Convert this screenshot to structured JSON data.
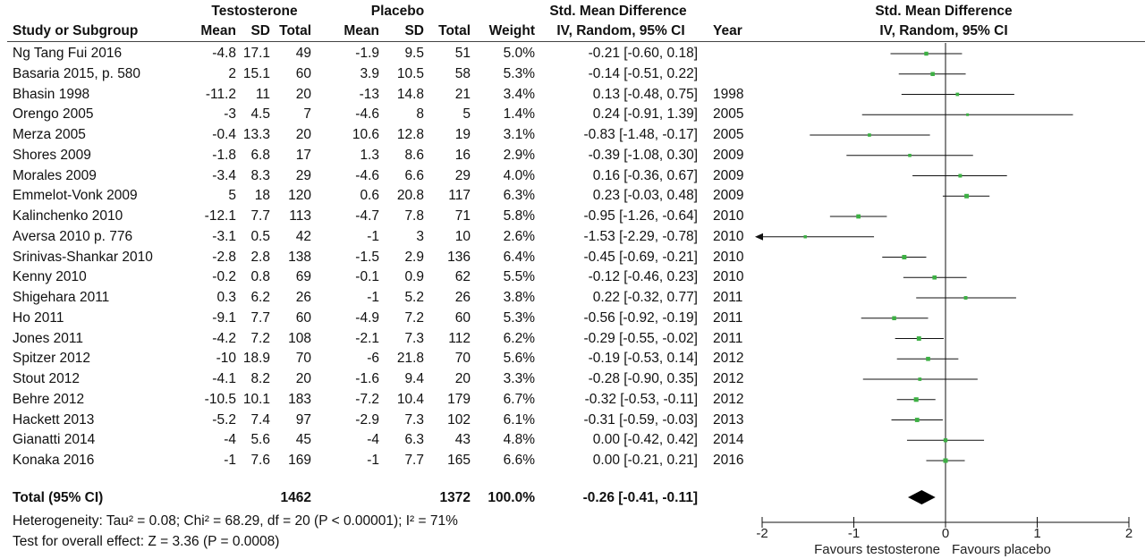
{
  "group_headers": {
    "treatment": "Testosterone",
    "control": "Placebo",
    "effect": "Std. Mean Difference",
    "plot_title": "Std. Mean Difference"
  },
  "columns": {
    "study": "Study or Subgroup",
    "mean": "Mean",
    "sd": "SD",
    "total": "Total",
    "weight": "Weight",
    "ci": "IV, Random, 95% CI",
    "year": "Year",
    "plot_method": "IV, Random, 95% CI"
  },
  "studies": [
    {
      "study": "Ng Tang Fui 2016",
      "t_mean": "-4.8",
      "t_sd": "17.1",
      "t_total": "49",
      "p_mean": "-1.9",
      "p_sd": "9.5",
      "p_total": "51",
      "weight": "5.0%",
      "ci": "-0.21 [-0.60, 0.18]",
      "year": ""
    },
    {
      "study": "Basaria 2015, p. 580",
      "t_mean": "2",
      "t_sd": "15.1",
      "t_total": "60",
      "p_mean": "3.9",
      "p_sd": "10.5",
      "p_total": "58",
      "weight": "5.3%",
      "ci": "-0.14 [-0.51, 0.22]",
      "year": ""
    },
    {
      "study": "Bhasin 1998",
      "t_mean": "-11.2",
      "t_sd": "11",
      "t_total": "20",
      "p_mean": "-13",
      "p_sd": "14.8",
      "p_total": "21",
      "weight": "3.4%",
      "ci": "0.13 [-0.48, 0.75]",
      "year": "1998"
    },
    {
      "study": "Orengo 2005",
      "t_mean": "-3",
      "t_sd": "4.5",
      "t_total": "7",
      "p_mean": "-4.6",
      "p_sd": "8",
      "p_total": "5",
      "weight": "1.4%",
      "ci": "0.24 [-0.91, 1.39]",
      "year": "2005"
    },
    {
      "study": "Merza 2005",
      "t_mean": "-0.4",
      "t_sd": "13.3",
      "t_total": "20",
      "p_mean": "10.6",
      "p_sd": "12.8",
      "p_total": "19",
      "weight": "3.1%",
      "ci": "-0.83 [-1.48, -0.17]",
      "year": "2005"
    },
    {
      "study": "Shores 2009",
      "t_mean": "-1.8",
      "t_sd": "6.8",
      "t_total": "17",
      "p_mean": "1.3",
      "p_sd": "8.6",
      "p_total": "16",
      "weight": "2.9%",
      "ci": "-0.39 [-1.08, 0.30]",
      "year": "2009"
    },
    {
      "study": "Morales 2009",
      "t_mean": "-3.4",
      "t_sd": "8.3",
      "t_total": "29",
      "p_mean": "-4.6",
      "p_sd": "6.6",
      "p_total": "29",
      "weight": "4.0%",
      "ci": "0.16 [-0.36, 0.67]",
      "year": "2009"
    },
    {
      "study": "Emmelot-Vonk 2009",
      "t_mean": "5",
      "t_sd": "18",
      "t_total": "120",
      "p_mean": "0.6",
      "p_sd": "20.8",
      "p_total": "117",
      "weight": "6.3%",
      "ci": "0.23 [-0.03, 0.48]",
      "year": "2009"
    },
    {
      "study": "Kalinchenko 2010",
      "t_mean": "-12.1",
      "t_sd": "7.7",
      "t_total": "113",
      "p_mean": "-4.7",
      "p_sd": "7.8",
      "p_total": "71",
      "weight": "5.8%",
      "ci": "-0.95 [-1.26, -0.64]",
      "year": "2010"
    },
    {
      "study": "Aversa 2010 p. 776",
      "t_mean": "-3.1",
      "t_sd": "0.5",
      "t_total": "42",
      "p_mean": "-1",
      "p_sd": "3",
      "p_total": "10",
      "weight": "2.6%",
      "ci": "-1.53 [-2.29, -0.78]",
      "year": "2010"
    },
    {
      "study": "Srinivas-Shankar 2010",
      "t_mean": "-2.8",
      "t_sd": "2.8",
      "t_total": "138",
      "p_mean": "-1.5",
      "p_sd": "2.9",
      "p_total": "136",
      "weight": "6.4%",
      "ci": "-0.45 [-0.69, -0.21]",
      "year": "2010"
    },
    {
      "study": "Kenny 2010",
      "t_mean": "-0.2",
      "t_sd": "0.8",
      "t_total": "69",
      "p_mean": "-0.1",
      "p_sd": "0.9",
      "p_total": "62",
      "weight": "5.5%",
      "ci": "-0.12 [-0.46, 0.23]",
      "year": "2010"
    },
    {
      "study": "Shigehara 2011",
      "t_mean": "0.3",
      "t_sd": "6.2",
      "t_total": "26",
      "p_mean": "-1",
      "p_sd": "5.2",
      "p_total": "26",
      "weight": "3.8%",
      "ci": "0.22 [-0.32, 0.77]",
      "year": "2011"
    },
    {
      "study": "Ho 2011",
      "t_mean": "-9.1",
      "t_sd": "7.7",
      "t_total": "60",
      "p_mean": "-4.9",
      "p_sd": "7.2",
      "p_total": "60",
      "weight": "5.3%",
      "ci": "-0.56 [-0.92, -0.19]",
      "year": "2011"
    },
    {
      "study": "Jones 2011",
      "t_mean": "-4.2",
      "t_sd": "7.2",
      "t_total": "108",
      "p_mean": "-2.1",
      "p_sd": "7.3",
      "p_total": "112",
      "weight": "6.2%",
      "ci": "-0.29 [-0.55, -0.02]",
      "year": "2011"
    },
    {
      "study": "Spitzer 2012",
      "t_mean": "-10",
      "t_sd": "18.9",
      "t_total": "70",
      "p_mean": "-6",
      "p_sd": "21.8",
      "p_total": "70",
      "weight": "5.6%",
      "ci": "-0.19 [-0.53, 0.14]",
      "year": "2012"
    },
    {
      "study": "Stout 2012",
      "t_mean": "-4.1",
      "t_sd": "8.2",
      "t_total": "20",
      "p_mean": "-1.6",
      "p_sd": "9.4",
      "p_total": "20",
      "weight": "3.3%",
      "ci": "-0.28 [-0.90, 0.35]",
      "year": "2012"
    },
    {
      "study": "Behre 2012",
      "t_mean": "-10.5",
      "t_sd": "10.1",
      "t_total": "183",
      "p_mean": "-7.2",
      "p_sd": "10.4",
      "p_total": "179",
      "weight": "6.7%",
      "ci": "-0.32 [-0.53, -0.11]",
      "year": "2012"
    },
    {
      "study": "Hackett 2013",
      "t_mean": "-5.2",
      "t_sd": "7.4",
      "t_total": "97",
      "p_mean": "-2.9",
      "p_sd": "7.3",
      "p_total": "102",
      "weight": "6.1%",
      "ci": "-0.31 [-0.59, -0.03]",
      "year": "2013"
    },
    {
      "study": "Gianatti 2014",
      "t_mean": "-4",
      "t_sd": "5.6",
      "t_total": "45",
      "p_mean": "-4",
      "p_sd": "6.3",
      "p_total": "43",
      "weight": "4.8%",
      "ci": "0.00 [-0.42, 0.42]",
      "year": "2014"
    },
    {
      "study": "Konaka 2016",
      "t_mean": "-1",
      "t_sd": "7.6",
      "t_total": "169",
      "p_mean": "-1",
      "p_sd": "7.7",
      "p_total": "165",
      "weight": "6.6%",
      "ci": "0.00 [-0.21, 0.21]",
      "year": "2016"
    }
  ],
  "total": {
    "label": "Total (95% CI)",
    "t_total": "1462",
    "p_total": "1372",
    "weight": "100.0%",
    "ci": "-0.26 [-0.41, -0.11]"
  },
  "heterogeneity": "Heterogeneity: Tau² = 0.08; Chi² = 68.29, df = 20 (P < 0.00001); I² = 71%",
  "overall_effect": "Test for overall effect: Z = 3.36 (P = 0.0008)",
  "axis": {
    "ticks": [
      "-2",
      "-1",
      "0",
      "1",
      "2"
    ],
    "favours_left": "Favours testosterone",
    "favours_right": "Favours placebo"
  },
  "colors": {
    "point": "#3cb043",
    "line": "#111111",
    "diamond": "#000000"
  },
  "chart_data": {
    "type": "forest",
    "xlim": [
      -2,
      2
    ],
    "x_ticks": [
      -2,
      -1,
      0,
      1,
      2
    ],
    "reference_line": 0,
    "studies": [
      {
        "name": "Ng Tang Fui 2016",
        "smd": -0.21,
        "lo": -0.6,
        "hi": 0.18,
        "weight": 5.0
      },
      {
        "name": "Basaria 2015, p. 580",
        "smd": -0.14,
        "lo": -0.51,
        "hi": 0.22,
        "weight": 5.3
      },
      {
        "name": "Bhasin 1998",
        "smd": 0.13,
        "lo": -0.48,
        "hi": 0.75,
        "weight": 3.4
      },
      {
        "name": "Orengo 2005",
        "smd": 0.24,
        "lo": -0.91,
        "hi": 1.39,
        "weight": 1.4
      },
      {
        "name": "Merza 2005",
        "smd": -0.83,
        "lo": -1.48,
        "hi": -0.17,
        "weight": 3.1
      },
      {
        "name": "Shores 2009",
        "smd": -0.39,
        "lo": -1.08,
        "hi": 0.3,
        "weight": 2.9
      },
      {
        "name": "Morales 2009",
        "smd": 0.16,
        "lo": -0.36,
        "hi": 0.67,
        "weight": 4.0
      },
      {
        "name": "Emmelot-Vonk 2009",
        "smd": 0.23,
        "lo": -0.03,
        "hi": 0.48,
        "weight": 6.3
      },
      {
        "name": "Kalinchenko 2010",
        "smd": -0.95,
        "lo": -1.26,
        "hi": -0.64,
        "weight": 5.8
      },
      {
        "name": "Aversa 2010 p. 776",
        "smd": -1.53,
        "lo": -2.29,
        "hi": -0.78,
        "weight": 2.6
      },
      {
        "name": "Srinivas-Shankar 2010",
        "smd": -0.45,
        "lo": -0.69,
        "hi": -0.21,
        "weight": 6.4
      },
      {
        "name": "Kenny 2010",
        "smd": -0.12,
        "lo": -0.46,
        "hi": 0.23,
        "weight": 5.5
      },
      {
        "name": "Shigehara 2011",
        "smd": 0.22,
        "lo": -0.32,
        "hi": 0.77,
        "weight": 3.8
      },
      {
        "name": "Ho 2011",
        "smd": -0.56,
        "lo": -0.92,
        "hi": -0.19,
        "weight": 5.3
      },
      {
        "name": "Jones 2011",
        "smd": -0.29,
        "lo": -0.55,
        "hi": -0.02,
        "weight": 6.2
      },
      {
        "name": "Spitzer 2012",
        "smd": -0.19,
        "lo": -0.53,
        "hi": 0.14,
        "weight": 5.6
      },
      {
        "name": "Stout 2012",
        "smd": -0.28,
        "lo": -0.9,
        "hi": 0.35,
        "weight": 3.3
      },
      {
        "name": "Behre 2012",
        "smd": -0.32,
        "lo": -0.53,
        "hi": -0.11,
        "weight": 6.7
      },
      {
        "name": "Hackett 2013",
        "smd": -0.31,
        "lo": -0.59,
        "hi": -0.03,
        "weight": 6.1
      },
      {
        "name": "Gianatti 2014",
        "smd": 0.0,
        "lo": -0.42,
        "hi": 0.42,
        "weight": 4.8
      },
      {
        "name": "Konaka 2016",
        "smd": 0.0,
        "lo": -0.21,
        "hi": 0.21,
        "weight": 6.6
      }
    ],
    "pooled": {
      "smd": -0.26,
      "lo": -0.41,
      "hi": -0.11
    }
  }
}
